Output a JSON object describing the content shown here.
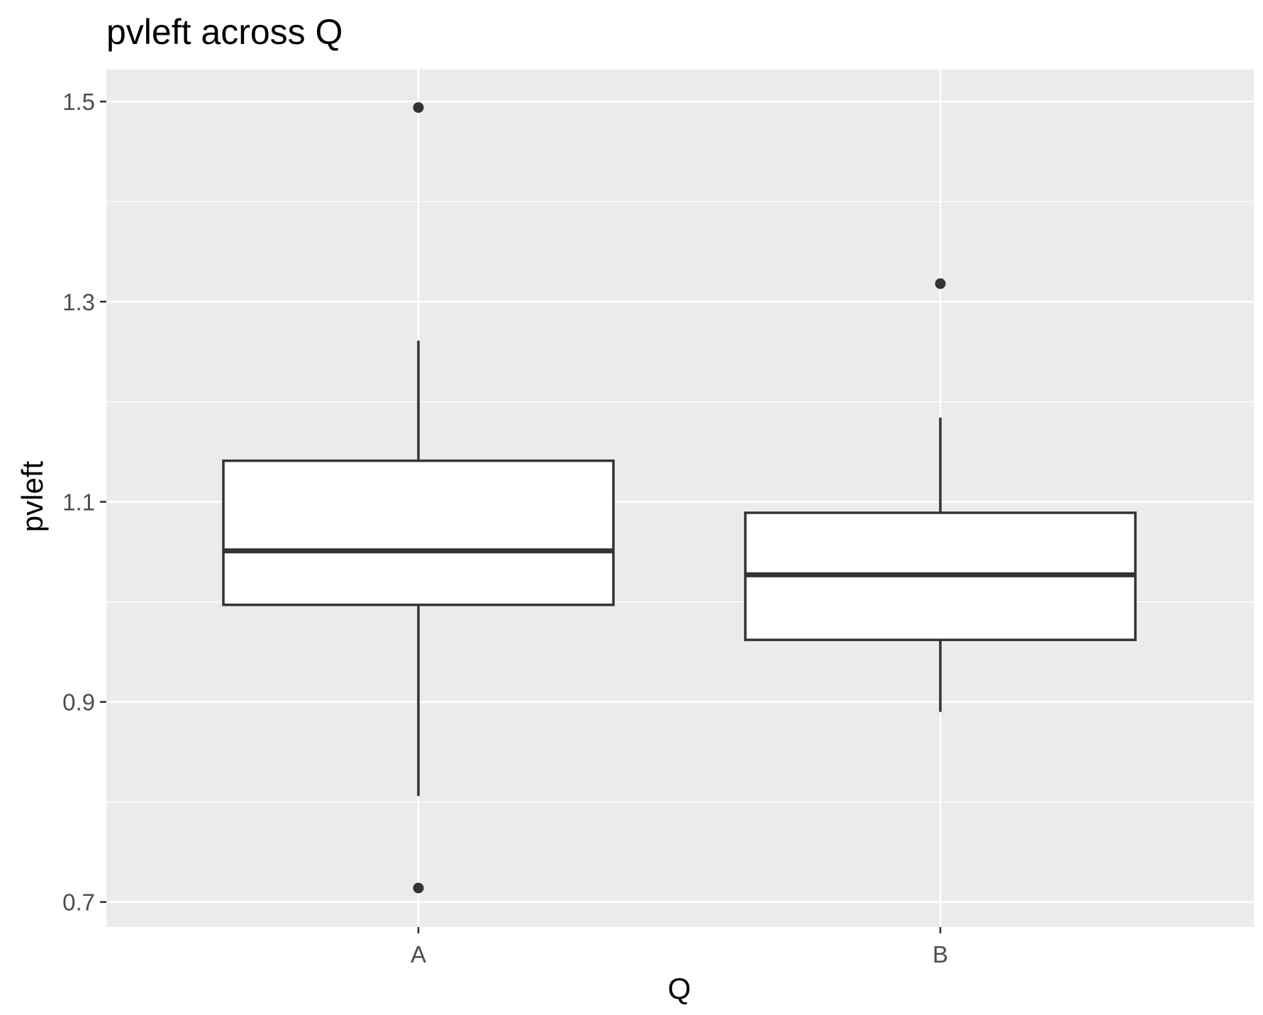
{
  "chart_data": {
    "type": "boxplot",
    "title": "pvleft across Q",
    "xlabel": "Q",
    "ylabel": "pvleft",
    "ylim": [
      0.675,
      1.532
    ],
    "y_ticks": [
      0.7,
      0.9,
      1.1,
      1.3,
      1.5
    ],
    "y_tick_labels": [
      "0.7",
      "0.9",
      "1.1",
      "1.3",
      "1.5"
    ],
    "y_minor_ticks": [
      0.8,
      1.0,
      1.2,
      1.4
    ],
    "categories": [
      "A",
      "B"
    ],
    "boxes": [
      {
        "category": "A",
        "lower_whisker": 0.806,
        "q1": 0.997,
        "median": 1.051,
        "q3": 1.141,
        "upper_whisker": 1.261,
        "outliers": [
          1.494,
          0.714
        ]
      },
      {
        "category": "B",
        "lower_whisker": 0.89,
        "q1": 0.962,
        "median": 1.027,
        "q3": 1.089,
        "upper_whisker": 1.184,
        "outliers": [
          1.318
        ]
      }
    ],
    "grid": true,
    "legend": "none",
    "colors": {
      "panel": "#ebebeb",
      "grid": "#ffffff",
      "box_fill": "#ffffff",
      "box_line": "#333333",
      "tick_text": "#4d4d4d"
    }
  }
}
